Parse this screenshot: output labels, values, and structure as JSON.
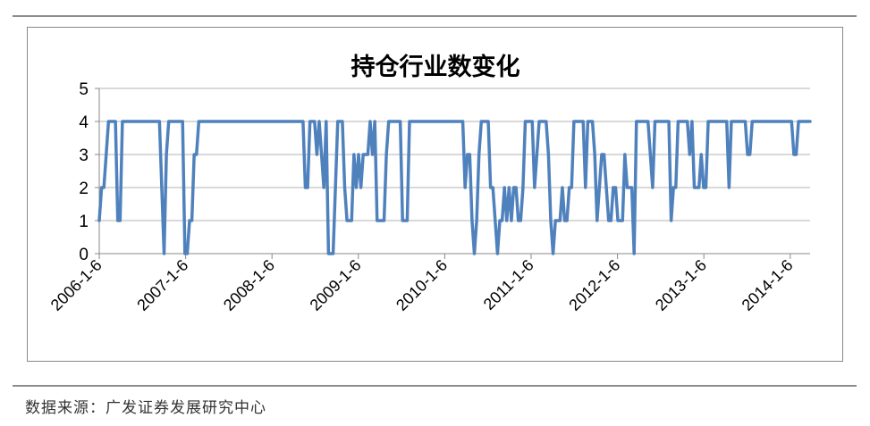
{
  "source": "数据来源：广发证券发展研究中心",
  "chart_data": {
    "type": "line",
    "title": "持仓行业数变化",
    "xlabel": "",
    "ylabel": "",
    "ylim": [
      0,
      5
    ],
    "yticks": [
      0,
      1,
      2,
      3,
      4,
      5
    ],
    "grid": true,
    "legend": "none",
    "line_color": "#4f81bd",
    "x_tick_labels": [
      "2006-1-6",
      "2007-1-6",
      "2008-1-6",
      "2009-1-6",
      "2010-1-6",
      "2011-1-6",
      "2012-1-6",
      "2013-1-6",
      "2014-1-6"
    ],
    "series": [
      {
        "values": [
          1,
          2,
          2,
          3,
          4,
          4,
          4,
          4,
          1,
          1,
          4,
          4,
          4,
          4,
          4,
          4,
          4,
          4,
          4,
          4,
          4,
          4,
          4,
          4,
          4,
          4,
          4,
          2,
          0,
          3,
          4,
          4,
          4,
          4,
          4,
          4,
          4,
          0,
          0,
          1,
          1,
          3,
          3,
          4,
          4,
          4,
          4,
          4,
          4,
          4,
          4,
          4,
          4,
          4,
          4,
          4,
          4,
          4,
          4,
          4,
          4,
          4,
          4,
          4,
          4,
          4,
          4,
          4,
          4,
          4,
          4,
          4,
          4,
          4,
          4,
          4,
          4,
          4,
          4,
          4,
          4,
          4,
          4,
          4,
          4,
          4,
          4,
          4,
          4,
          2,
          2,
          4,
          4,
          4,
          3,
          4,
          3,
          2,
          4,
          0,
          0,
          0,
          2,
          4,
          4,
          4,
          2,
          1,
          1,
          1,
          3,
          2,
          3,
          2,
          3,
          3,
          3,
          4,
          3,
          4,
          1,
          1,
          1,
          1,
          3,
          4,
          4,
          4,
          4,
          4,
          4,
          1,
          1,
          1,
          4,
          4,
          4,
          4,
          4,
          4,
          4,
          4,
          4,
          4,
          4,
          4,
          4,
          4,
          4,
          4,
          4,
          4,
          4,
          4,
          4,
          4,
          4,
          4,
          2,
          3,
          3,
          1,
          0,
          1,
          3,
          4,
          4,
          4,
          4,
          2,
          2,
          1,
          0,
          1,
          1,
          2,
          1,
          2,
          1,
          2,
          2,
          1,
          1,
          2,
          4,
          4,
          4,
          4,
          2,
          3,
          4,
          4,
          4,
          4,
          3,
          1,
          0,
          1,
          1,
          1,
          2,
          1,
          1,
          2,
          2,
          4,
          4,
          4,
          4,
          4,
          2,
          4,
          4,
          4,
          3,
          1,
          2,
          3,
          3,
          2,
          1,
          1,
          2,
          2,
          1,
          1,
          1,
          3,
          2,
          2,
          2,
          0,
          4,
          4,
          4,
          4,
          4,
          4,
          3,
          2,
          4,
          4,
          4,
          4,
          4,
          4,
          4,
          1,
          2,
          2,
          4,
          4,
          4,
          4,
          4,
          3,
          4,
          2,
          2,
          2,
          3,
          2,
          2,
          4,
          4,
          4,
          4,
          4,
          4,
          4,
          4,
          4,
          2,
          4,
          4,
          4,
          4,
          4,
          4,
          4,
          3,
          3,
          4,
          4,
          4,
          4,
          4,
          4,
          4,
          4,
          4,
          4,
          4,
          4,
          4,
          4,
          4,
          4,
          4,
          4,
          3,
          3,
          4,
          4,
          4,
          4,
          4,
          4
        ]
      }
    ]
  }
}
